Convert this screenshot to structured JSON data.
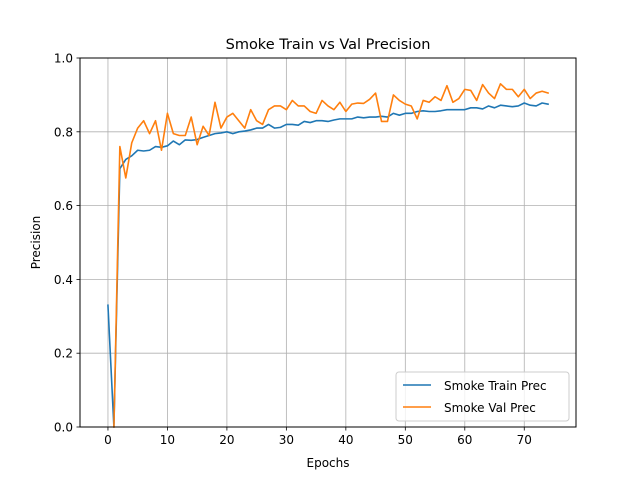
{
  "chart_data": {
    "type": "line",
    "title": "Smoke Train vs Val Precision",
    "xlabel": "Epochs",
    "ylabel": "Precision",
    "xlim": [
      -4.7,
      78.7
    ],
    "ylim": [
      0.0,
      1.0
    ],
    "xticks": [
      0,
      10,
      20,
      30,
      40,
      50,
      60,
      70
    ],
    "yticks": [
      0.0,
      0.2,
      0.4,
      0.6,
      0.8,
      1.0
    ],
    "xtick_labels": [
      "0",
      "10",
      "20",
      "30",
      "40",
      "50",
      "60",
      "70"
    ],
    "ytick_labels": [
      "0.0",
      "0.2",
      "0.4",
      "0.6",
      "0.8",
      "1.0"
    ],
    "grid": true,
    "legend_position": "lower-right",
    "x": [
      0,
      1,
      2,
      3,
      4,
      5,
      6,
      7,
      8,
      9,
      10,
      11,
      12,
      13,
      14,
      15,
      16,
      17,
      18,
      19,
      20,
      21,
      22,
      23,
      24,
      25,
      26,
      27,
      28,
      29,
      30,
      31,
      32,
      33,
      34,
      35,
      36,
      37,
      38,
      39,
      40,
      41,
      42,
      43,
      44,
      45,
      46,
      47,
      48,
      49,
      50,
      51,
      52,
      53,
      54,
      55,
      56,
      57,
      58,
      59,
      60,
      61,
      62,
      63,
      64,
      65,
      66,
      67,
      68,
      69,
      70,
      71,
      72,
      73,
      74
    ],
    "series": [
      {
        "name": "Smoke Train Prec",
        "color": "#1f77b4",
        "values": [
          0.33,
          0.0,
          0.7,
          0.725,
          0.735,
          0.75,
          0.748,
          0.75,
          0.76,
          0.758,
          0.762,
          0.775,
          0.765,
          0.778,
          0.777,
          0.779,
          0.785,
          0.79,
          0.795,
          0.797,
          0.8,
          0.795,
          0.8,
          0.802,
          0.805,
          0.81,
          0.81,
          0.82,
          0.81,
          0.812,
          0.82,
          0.82,
          0.818,
          0.828,
          0.825,
          0.83,
          0.83,
          0.828,
          0.832,
          0.835,
          0.835,
          0.835,
          0.84,
          0.838,
          0.84,
          0.84,
          0.842,
          0.84,
          0.85,
          0.845,
          0.85,
          0.85,
          0.855,
          0.857,
          0.855,
          0.855,
          0.857,
          0.86,
          0.86,
          0.86,
          0.86,
          0.865,
          0.865,
          0.862,
          0.87,
          0.865,
          0.872,
          0.87,
          0.868,
          0.87,
          0.878,
          0.872,
          0.87,
          0.878,
          0.875
        ]
      },
      {
        "name": "Smoke Val Prec",
        "color": "#ff7f0e",
        "values": [
          null,
          0.0,
          0.76,
          0.675,
          0.77,
          0.81,
          0.83,
          0.795,
          0.83,
          0.75,
          0.85,
          0.795,
          0.79,
          0.79,
          0.84,
          0.765,
          0.815,
          0.79,
          0.88,
          0.81,
          0.84,
          0.85,
          0.83,
          0.81,
          0.86,
          0.83,
          0.82,
          0.86,
          0.87,
          0.87,
          0.86,
          0.885,
          0.87,
          0.87,
          0.855,
          0.85,
          0.885,
          0.87,
          0.86,
          0.88,
          0.855,
          0.875,
          0.878,
          0.877,
          0.888,
          0.905,
          0.828,
          0.828,
          0.9,
          0.885,
          0.875,
          0.87,
          0.835,
          0.885,
          0.88,
          0.895,
          0.885,
          0.925,
          0.88,
          0.89,
          0.915,
          0.912,
          0.885,
          0.928,
          0.905,
          0.89,
          0.93,
          0.915,
          0.915,
          0.895,
          0.915,
          0.89,
          0.905,
          0.91,
          0.905
        ]
      }
    ]
  }
}
